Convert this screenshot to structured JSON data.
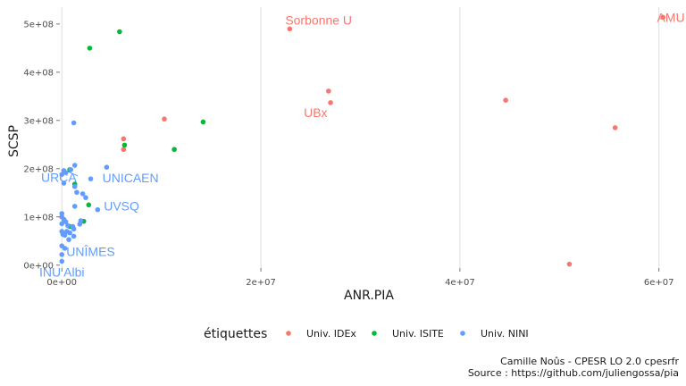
{
  "chart_data": {
    "type": "scatter",
    "xlabel": "ANR.PIA",
    "ylabel": "SCSP",
    "xlim": [
      -200000,
      62000000
    ],
    "ylim": [
      -6000000,
      535000000
    ],
    "x_ticks": [
      0,
      20000000,
      40000000,
      60000000
    ],
    "x_tick_labels": [
      "0e+00",
      "2e+07",
      "4e+07",
      "6e+07"
    ],
    "y_ticks": [
      0,
      100000000,
      200000000,
      300000000,
      400000000,
      500000000
    ],
    "y_tick_labels": [
      "0e+00",
      "1e+08",
      "2e+08",
      "3e+08",
      "4e+08",
      "5e+08"
    ],
    "grid": "major vertical lines",
    "legend": {
      "title": "étiquettes",
      "position": "bottom",
      "entries": [
        "Univ. IDEx",
        "Univ. ISITE",
        "Univ. NINI"
      ]
    },
    "series": [
      {
        "name": "Univ. IDEx",
        "color": "#F8766D",
        "points": [
          [
            22900000,
            490000000
          ],
          [
            60400000,
            514000000
          ],
          [
            26800000,
            361000000
          ],
          [
            27000000,
            337000000
          ],
          [
            44600000,
            342000000
          ],
          [
            55600000,
            285000000
          ],
          [
            10300000,
            303000000
          ],
          [
            6200000,
            262000000
          ],
          [
            6200000,
            240000000
          ],
          [
            51000000,
            2000000
          ]
        ]
      },
      {
        "name": "Univ. ISITE",
        "color": "#00BA38",
        "points": [
          [
            5800000,
            484000000
          ],
          [
            2800000,
            450000000
          ],
          [
            14200000,
            297000000
          ],
          [
            6300000,
            249000000
          ],
          [
            11300000,
            240000000
          ],
          [
            800000,
            198000000
          ],
          [
            1300000,
            168000000
          ],
          [
            2700000,
            125000000
          ],
          [
            2200000,
            91000000
          ],
          [
            800000,
            80000000
          ]
        ]
      },
      {
        "name": "Univ. NINI",
        "color": "#619CFF",
        "points": [
          [
            1200000,
            295000000
          ],
          [
            4500000,
            203000000
          ],
          [
            1300000,
            207000000
          ],
          [
            200000,
            196000000
          ],
          [
            900000,
            198000000
          ],
          [
            0,
            188000000
          ],
          [
            400000,
            192000000
          ],
          [
            2900000,
            179000000
          ],
          [
            200000,
            170000000
          ],
          [
            1300000,
            163000000
          ],
          [
            1500000,
            151000000
          ],
          [
            2100000,
            148000000
          ],
          [
            2400000,
            140000000
          ],
          [
            1300000,
            122000000
          ],
          [
            3600000,
            115000000
          ],
          [
            0,
            107000000
          ],
          [
            0,
            100000000
          ],
          [
            200000,
            95000000
          ],
          [
            400000,
            90000000
          ],
          [
            1900000,
            92000000
          ],
          [
            1800000,
            85000000
          ],
          [
            0,
            86000000
          ],
          [
            600000,
            82000000
          ],
          [
            1100000,
            80000000
          ],
          [
            1200000,
            75000000
          ],
          [
            0,
            70000000
          ],
          [
            500000,
            70000000
          ],
          [
            800000,
            67000000
          ],
          [
            100000,
            64000000
          ],
          [
            300000,
            62000000
          ],
          [
            1200000,
            60000000
          ],
          [
            700000,
            53000000
          ],
          [
            0,
            40000000
          ],
          [
            300000,
            35000000
          ],
          [
            0,
            22000000
          ],
          [
            0,
            8000000
          ]
        ]
      }
    ],
    "annotations": [
      {
        "text": "Sorbonne U",
        "series": "Univ. IDEx",
        "x": 25800000,
        "y": 508000000,
        "anchor": "middle"
      },
      {
        "text": "AMU",
        "series": "Univ. IDEx",
        "x": 61200000,
        "y": 514000000,
        "anchor": "middle"
      },
      {
        "text": "UBx",
        "series": "Univ. IDEx",
        "x": 25500000,
        "y": 316000000,
        "anchor": "middle"
      },
      {
        "text": "URCA",
        "series": "Univ. NINI",
        "x": -300000,
        "y": 182000000,
        "anchor": "middle"
      },
      {
        "text": "UNICAEN",
        "series": "Univ. NINI",
        "x": 6900000,
        "y": 181000000,
        "anchor": "middle"
      },
      {
        "text": "UVSQ",
        "series": "Univ. NINI",
        "x": 6000000,
        "y": 123000000,
        "anchor": "middle"
      },
      {
        "text": "UNÎMES",
        "series": "Univ. NINI",
        "x": 2900000,
        "y": 28000000,
        "anchor": "middle"
      },
      {
        "text": "INU Albi",
        "series": "Univ. NINI",
        "x": 0,
        "y": -14000000,
        "anchor": "middle"
      }
    ],
    "caption": [
      "Camille Noûs - CPESR LO 2.0 cpesrfr",
      "Source : https://github.com/juliengossa/pia"
    ]
  }
}
